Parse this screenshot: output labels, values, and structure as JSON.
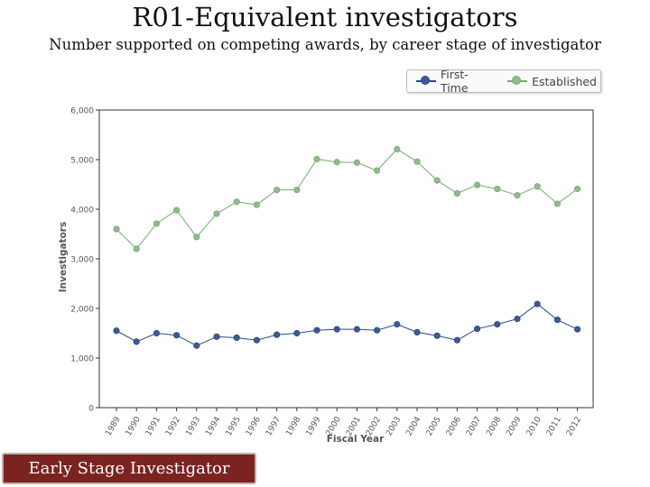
{
  "title": "R01-Equivalent investigators",
  "subtitle": "Number supported on competing awards, by career stage  of investigator",
  "badge_label": "Early Stage Investigator",
  "colors": {
    "first_time": "#3b5b94",
    "established": "#8fbc8a"
  },
  "chart_data": {
    "type": "line",
    "xlabel": "Fiscal Year",
    "ylabel": "Investigators",
    "ylim": [
      0,
      6000
    ],
    "yticks": [
      "0",
      "1,000",
      "2,000",
      "3,000",
      "4,000",
      "5,000",
      "6,000"
    ],
    "yticks_values": [
      0,
      1000,
      2000,
      3000,
      4000,
      5000,
      6000
    ],
    "legend_position": "top-right",
    "grid": false,
    "x": [
      "1989",
      "1990",
      "1991",
      "1992",
      "1993",
      "1994",
      "1995",
      "1996",
      "1997",
      "1998",
      "1999",
      "2000",
      "2001",
      "2002",
      "2003",
      "2004",
      "2005",
      "2006",
      "2007",
      "2008",
      "2009",
      "2010",
      "2011",
      "2012"
    ],
    "series": [
      {
        "name": "First-Time",
        "values": [
          1550,
          1330,
          1500,
          1460,
          1250,
          1430,
          1410,
          1360,
          1470,
          1500,
          1560,
          1580,
          1580,
          1560,
          1680,
          1520,
          1450,
          1360,
          1590,
          1680,
          1790,
          2090,
          1770,
          1580
        ]
      },
      {
        "name": "Established",
        "values": [
          3600,
          3200,
          3710,
          3980,
          3440,
          3910,
          4150,
          4090,
          4390,
          4390,
          5010,
          4950,
          4940,
          4780,
          5210,
          4960,
          4580,
          4320,
          4490,
          4410,
          4280,
          4460,
          4110,
          4410
        ]
      }
    ]
  }
}
